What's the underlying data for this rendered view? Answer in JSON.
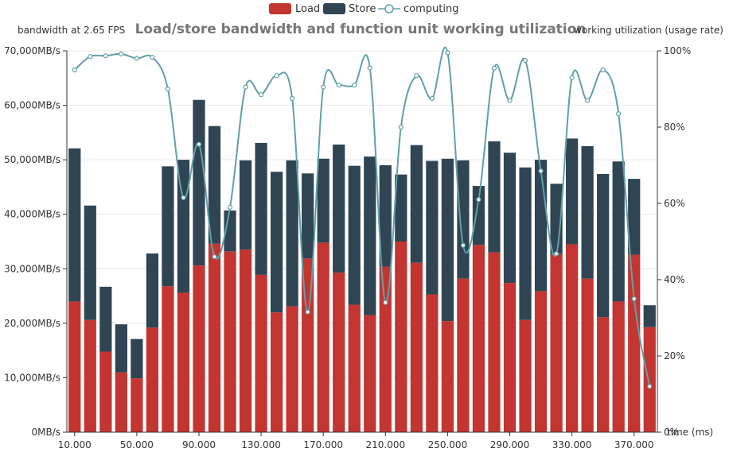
{
  "colors": {
    "load": "#c23531",
    "store": "#2f4554",
    "computing": "#61a0a8",
    "axis": "#333333",
    "grid": "#e8e8e8",
    "title": "#777777"
  },
  "chart_data": {
    "type": "bar",
    "stacked": true,
    "title": "Load/store bandwidth and function unit working utilization",
    "left_axis_title": "bandwidth at 2.65 FPS",
    "right_axis_title": "working utilization (usage rate)",
    "x_axis_title": "time (ms)",
    "legend": [
      "Load",
      "Store",
      "computing"
    ],
    "legend_position": "top-center",
    "x": [
      10,
      20,
      30,
      40,
      50,
      60,
      70,
      80,
      90,
      100,
      110,
      120,
      130,
      140,
      150,
      160,
      170,
      180,
      190,
      200,
      210,
      220,
      230,
      240,
      250,
      260,
      270,
      280,
      290,
      300,
      310,
      320,
      330,
      340,
      350,
      360,
      370,
      380
    ],
    "x_tick_labels": [
      "10.000",
      "50.000",
      "90.000",
      "130.000",
      "170.000",
      "210.000",
      "250.000",
      "290.000",
      "330.000",
      "370.000"
    ],
    "x_tick_values": [
      10,
      50,
      90,
      130,
      170,
      210,
      250,
      290,
      330,
      370
    ],
    "y_left": {
      "range": [
        0,
        70000
      ],
      "ticks": [
        0,
        10000,
        20000,
        30000,
        40000,
        50000,
        60000,
        70000
      ],
      "tick_labels": [
        "0MB/s",
        "10,000MB/s",
        "20,000MB/s",
        "30,000MB/s",
        "40,000MB/s",
        "50,000MB/s",
        "60,000MB/s",
        "70,000MB/s"
      ]
    },
    "y_right": {
      "range": [
        0,
        100
      ],
      "ticks": [
        0,
        20,
        40,
        60,
        80,
        100
      ],
      "tick_labels": [
        "0%",
        "20%",
        "40%",
        "60%",
        "80%",
        "100%"
      ]
    },
    "series": [
      {
        "name": "Load",
        "type": "bar",
        "axis": "left",
        "values": [
          24000,
          20600,
          14800,
          11000,
          9900,
          19200,
          26800,
          25600,
          30600,
          34600,
          33200,
          33500,
          28900,
          22000,
          23100,
          31900,
          34800,
          29300,
          23400,
          21500,
          30400,
          35000,
          31100,
          25300,
          20400,
          28200,
          34400,
          33000,
          27400,
          20600,
          25900,
          32700,
          34500,
          28200,
          21100,
          24000,
          32600,
          19300
        ]
      },
      {
        "name": "Store",
        "type": "bar",
        "axis": "left",
        "values": [
          28100,
          21000,
          11900,
          8800,
          7200,
          13600,
          22000,
          24400,
          30400,
          21600,
          7500,
          16400,
          24200,
          25800,
          26800,
          15600,
          15400,
          23500,
          25500,
          29100,
          18600,
          12300,
          21600,
          24500,
          29800,
          21700,
          10800,
          20400,
          23900,
          28000,
          24100,
          12900,
          19400,
          24300,
          26300,
          25700,
          13900,
          4000
        ]
      },
      {
        "name": "computing",
        "type": "line",
        "axis": "right",
        "values": [
          95,
          98.5,
          98.7,
          99.2,
          98,
          98.3,
          90,
          61.5,
          75.5,
          46,
          59,
          90.5,
          88.5,
          93.5,
          87.5,
          31.5,
          90.5,
          91,
          91,
          95.5,
          34,
          80,
          93.5,
          87.5,
          99.5,
          49,
          61,
          95.5,
          87,
          97.5,
          68.5,
          46.8,
          93,
          87,
          95,
          83.5,
          35,
          12
        ]
      }
    ]
  }
}
